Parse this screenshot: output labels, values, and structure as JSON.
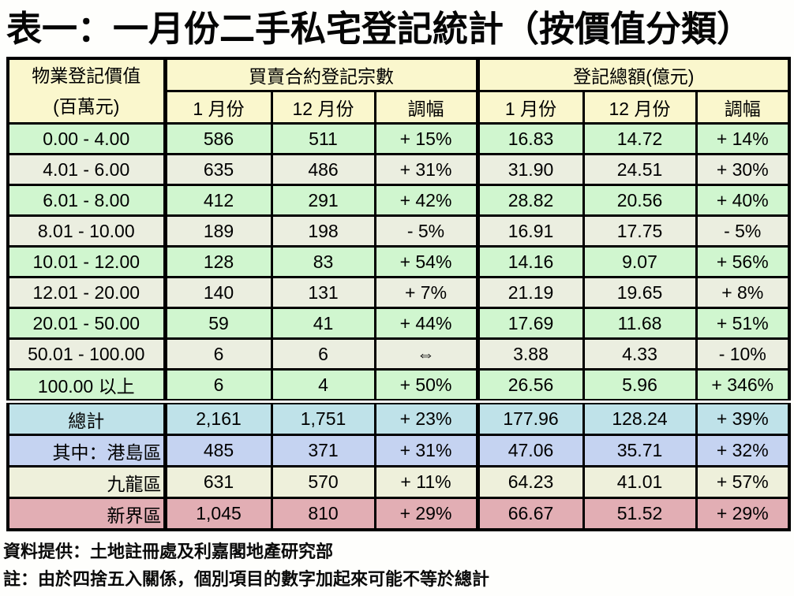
{
  "title": "表一：一月份二手私宅登記統計（按價值分類）",
  "table": {
    "header": {
      "label_line1": "物業登記價值",
      "label_line2": "(百萬元)",
      "group1": "買賣合約登記宗數",
      "group2": "登記總額(億元)",
      "sub": [
        "1 月份",
        "12 月份",
        "調幅",
        "1 月份",
        "12 月份",
        "調幅"
      ]
    },
    "rows": [
      {
        "label": "0.00 - 4.00",
        "band": "row_green",
        "values": [
          "586",
          "511",
          "+ 15%",
          "16.83",
          "14.72",
          "+ 14%"
        ]
      },
      {
        "label": "4.01 - 6.00",
        "band": "row_grey",
        "values": [
          "635",
          "486",
          "+ 31%",
          "31.90",
          "24.51",
          "+ 30%"
        ]
      },
      {
        "label": "6.01 - 8.00",
        "band": "row_green",
        "values": [
          "412",
          "291",
          "+ 42%",
          "28.82",
          "20.56",
          "+ 40%"
        ]
      },
      {
        "label": "8.01 - 10.00",
        "band": "row_grey",
        "values": [
          "189",
          "198",
          "- 5%",
          "16.91",
          "17.75",
          "- 5%"
        ]
      },
      {
        "label": "10.01 - 12.00",
        "band": "row_green",
        "values": [
          "128",
          "83",
          "+ 54%",
          "14.16",
          "9.07",
          "+ 56%"
        ]
      },
      {
        "label": "12.01 - 20.00",
        "band": "row_grey",
        "values": [
          "140",
          "131",
          "+ 7%",
          "21.19",
          "19.65",
          "+ 8%"
        ]
      },
      {
        "label": "20.01 - 50.00",
        "band": "row_green",
        "values": [
          "59",
          "41",
          "+ 44%",
          "17.69",
          "11.68",
          "+ 51%"
        ]
      },
      {
        "label": "50.01 - 100.00",
        "band": "row_grey",
        "values": [
          "6",
          "6",
          "⇔",
          "3.88",
          "4.33",
          "- 10%"
        ]
      },
      {
        "label": "100.00 以上",
        "band": "row_green",
        "values": [
          "6",
          "4",
          "+ 50%",
          "26.56",
          "5.96",
          "+ 346%"
        ]
      }
    ],
    "summary_rows": [
      {
        "label": "總計",
        "band": "total_blue",
        "label_align": "center",
        "values": [
          "2,161",
          "1,751",
          "+ 23%",
          "177.96",
          "128.24",
          "+ 39%"
        ]
      },
      {
        "label": "其中：港島區",
        "band": "hk_island_blue",
        "label_align": "right",
        "values": [
          "485",
          "371",
          "+ 31%",
          "47.06",
          "35.71",
          "+ 32%"
        ]
      },
      {
        "label": "九龍區",
        "band": "kowloon_cream",
        "label_align": "right",
        "values": [
          "631",
          "570",
          "+ 11%",
          "64.23",
          "41.01",
          "+ 57%"
        ]
      },
      {
        "label": "新界區",
        "band": "nt_pink",
        "label_align": "right",
        "values": [
          "1,045",
          "810",
          "+ 29%",
          "66.67",
          "51.52",
          "+ 29%"
        ]
      }
    ]
  },
  "footer": {
    "source": "資料提供：土地註冊處及利嘉閣地產研究部",
    "note": "註：由於四捨五入關係，個別項目的數字加起來可能不等於總計"
  },
  "colors": {
    "header_bg": "#faf7cd",
    "row_green": "#d0f6cf",
    "row_grey": "#ebeee0",
    "total_blue": "#bfe2e9",
    "hk_island_blue": "#c5d3f1",
    "kowloon_cream": "#eef0db",
    "nt_pink": "#e2aeb4",
    "border": "#000000",
    "text": "#000000"
  }
}
